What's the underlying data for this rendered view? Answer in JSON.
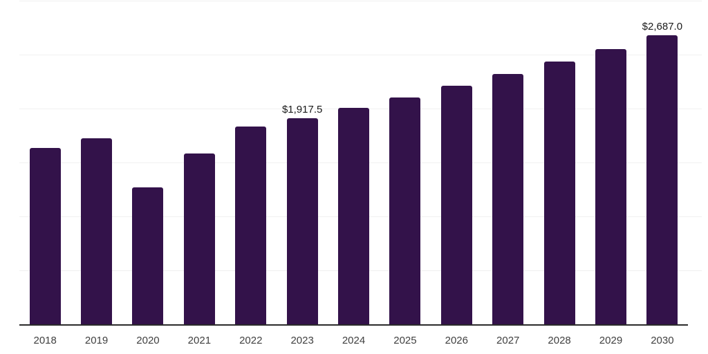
{
  "chart_data": {
    "type": "bar",
    "title": "",
    "xlabel": "",
    "ylabel": "",
    "categories": [
      "2018",
      "2019",
      "2020",
      "2021",
      "2022",
      "2023",
      "2024",
      "2025",
      "2026",
      "2027",
      "2028",
      "2029",
      "2030"
    ],
    "values": [
      1640,
      1730,
      1275,
      1590,
      1840,
      1917.5,
      2010,
      2110,
      2215,
      2325,
      2440,
      2560,
      2687
    ],
    "value_labels": {
      "2023": "$1,917.5",
      "2030": "$2,687.0"
    },
    "ylim": [
      0,
      3000
    ],
    "gridline_step": 500,
    "grid": "horizontal-only",
    "legend_position": "none",
    "y_tick_labels_visible": false,
    "series_count": 1
  },
  "colors": {
    "bar": "#33124a",
    "axis_line": "#2b2b2b",
    "gridline": "#f0f0f0",
    "x_tick_label": "#404040",
    "data_label": "#1a1a1a",
    "background": "#ffffff"
  }
}
